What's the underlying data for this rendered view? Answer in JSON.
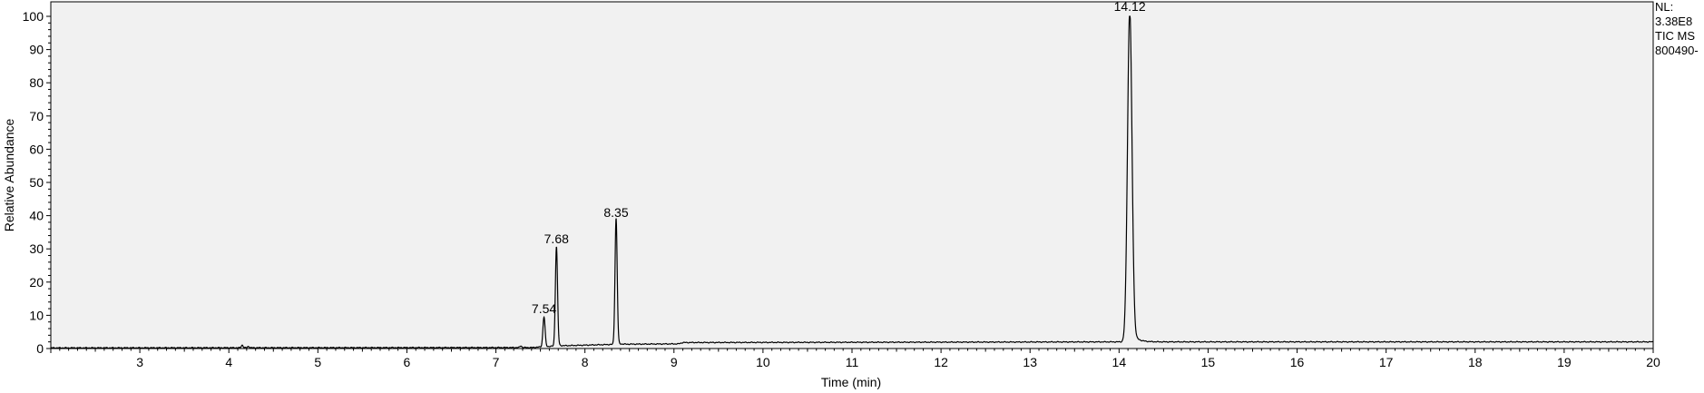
{
  "chart_data": {
    "type": "line",
    "title": "",
    "xlabel": "Time (min)",
    "ylabel": "Relative Abundance",
    "xlim": [
      2.0,
      20.0
    ],
    "ylim": [
      0,
      100
    ],
    "x_ticks": [
      3,
      4,
      5,
      6,
      7,
      8,
      9,
      10,
      11,
      12,
      13,
      14,
      15,
      16,
      17,
      18,
      19,
      20
    ],
    "y_ticks": [
      0,
      10,
      20,
      30,
      40,
      50,
      60,
      70,
      80,
      90,
      100
    ],
    "grid": false,
    "info_lines": [
      "NL:",
      "3.38E8",
      "TIC  MS",
      "800490-"
    ],
    "peaks": [
      {
        "label": "7.54",
        "x": 7.54,
        "y": 9.0,
        "width": 0.012,
        "tail": 0.015
      },
      {
        "label": "7.68",
        "x": 7.68,
        "y": 30.0,
        "width": 0.012,
        "tail": 0.02
      },
      {
        "label": "8.35",
        "x": 8.35,
        "y": 38.0,
        "width": 0.012,
        "tail": 0.02
      },
      {
        "label": "14.12",
        "x": 14.12,
        "y": 100.0,
        "width": 0.025,
        "tail": 0.06
      }
    ],
    "minor_peaks": [
      {
        "x": 4.15,
        "y": 0.8,
        "width": 0.01
      },
      {
        "x": 4.22,
        "y": 0.4,
        "width": 0.01
      },
      {
        "x": 7.28,
        "y": 0.5,
        "width": 0.01
      }
    ],
    "baseline": [
      {
        "x": 2.0,
        "y": 0.2
      },
      {
        "x": 7.4,
        "y": 0.3
      },
      {
        "x": 7.7,
        "y": 0.8
      },
      {
        "x": 8.4,
        "y": 1.3
      },
      {
        "x": 9.05,
        "y": 1.4
      },
      {
        "x": 9.1,
        "y": 1.8
      },
      {
        "x": 14.0,
        "y": 2.0
      },
      {
        "x": 14.5,
        "y": 2.0
      },
      {
        "x": 20.0,
        "y": 2.0
      }
    ]
  }
}
